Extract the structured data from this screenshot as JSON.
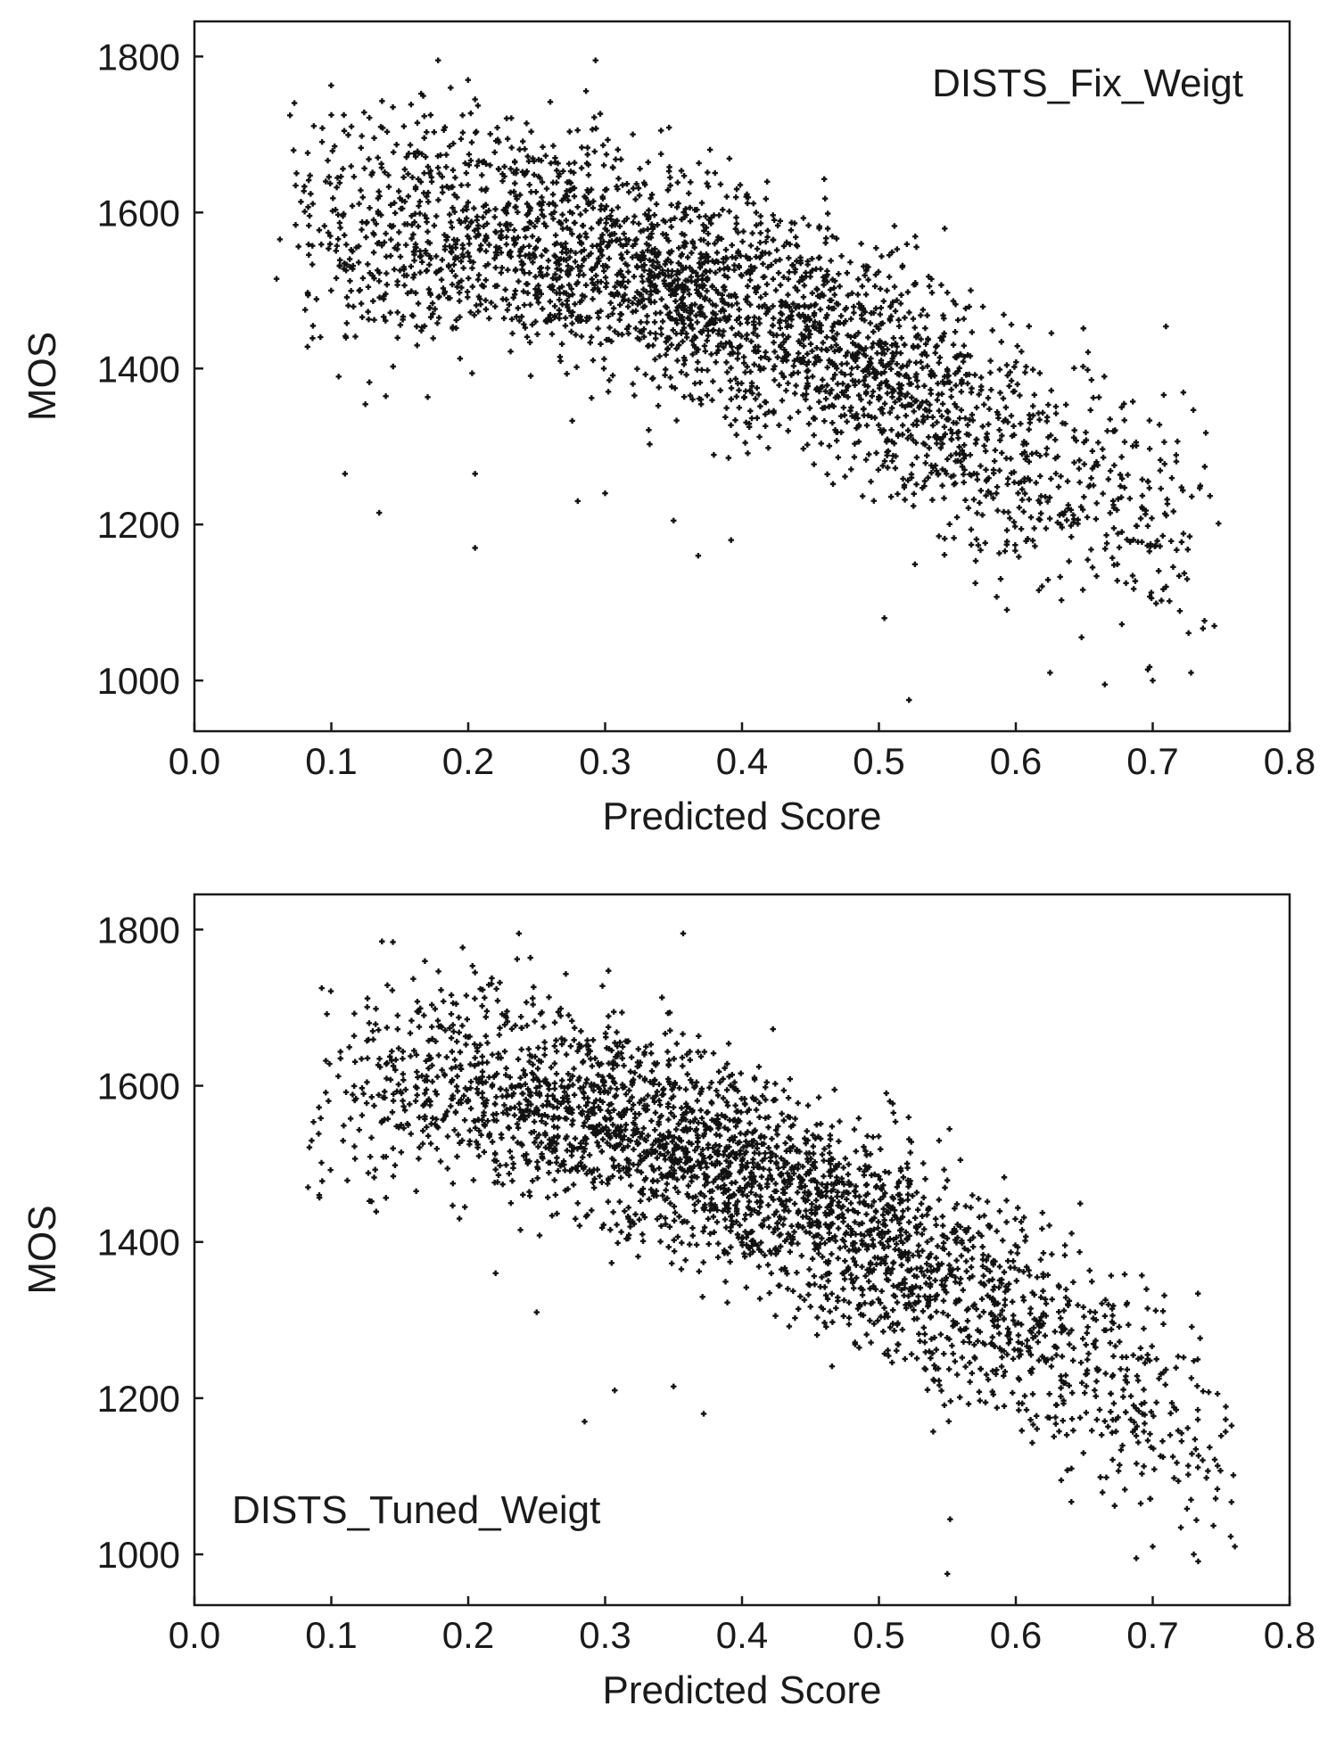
{
  "chart_data": [
    {
      "type": "scatter",
      "title": "",
      "annotation": "DISTS_Fix_Weigt",
      "annotation_position": "top-right",
      "xlabel": "Predicted Score",
      "ylabel": "MOS",
      "xlim": [
        0.0,
        0.8
      ],
      "ylim": [
        935,
        1845
      ],
      "xticks": [
        "0.0",
        "0.1",
        "0.2",
        "0.3",
        "0.4",
        "0.5",
        "0.6",
        "0.7",
        "0.8"
      ],
      "yticks": [
        "1000",
        "1200",
        "1400",
        "1600",
        "1800"
      ],
      "grid": false,
      "marker": "plus",
      "marker_color": "#111111",
      "points_estimated": 3000,
      "trend": {
        "center": [
          [
            0.1,
            1575
          ],
          [
            0.2,
            1580
          ],
          [
            0.3,
            1545
          ],
          [
            0.4,
            1475
          ],
          [
            0.5,
            1410
          ],
          [
            0.6,
            1290
          ],
          [
            0.7,
            1215
          ]
        ],
        "x_distribution": [
          [
            0.06,
            0.0
          ],
          [
            0.1,
            0.35
          ],
          [
            0.2,
            0.7
          ],
          [
            0.3,
            0.9
          ],
          [
            0.4,
            1.0
          ],
          [
            0.5,
            0.85
          ],
          [
            0.6,
            0.45
          ],
          [
            0.7,
            0.25
          ],
          [
            0.75,
            0.05
          ]
        ],
        "spread": [
          [
            0.1,
            80
          ],
          [
            0.3,
            70
          ],
          [
            0.5,
            75
          ],
          [
            0.7,
            85
          ]
        ],
        "outliers": [
          [
            0.06,
            1515
          ],
          [
            0.1,
            1725
          ],
          [
            0.145,
            1735
          ],
          [
            0.178,
            1795
          ],
          [
            0.205,
            1745
          ],
          [
            0.293,
            1795
          ],
          [
            0.11,
            1265
          ],
          [
            0.135,
            1215
          ],
          [
            0.205,
            1170
          ],
          [
            0.205,
            1265
          ],
          [
            0.28,
            1230
          ],
          [
            0.3,
            1240
          ],
          [
            0.368,
            1160
          ],
          [
            0.392,
            1180
          ],
          [
            0.35,
            1205
          ],
          [
            0.522,
            975
          ],
          [
            0.504,
            1080
          ],
          [
            0.625,
            1010
          ],
          [
            0.665,
            995
          ],
          [
            0.7,
            1000
          ],
          [
            0.728,
            1010
          ],
          [
            0.745,
            1070
          ]
        ]
      }
    },
    {
      "type": "scatter",
      "title": "",
      "annotation": "DISTS_Tuned_Weigt",
      "annotation_position": "bottom-left",
      "xlabel": "Predicted Score",
      "ylabel": "MOS",
      "xlim": [
        0.0,
        0.8
      ],
      "ylim": [
        935,
        1845
      ],
      "xticks": [
        "0.0",
        "0.1",
        "0.2",
        "0.3",
        "0.4",
        "0.5",
        "0.6",
        "0.7",
        "0.8"
      ],
      "yticks": [
        "1000",
        "1200",
        "1400",
        "1600",
        "1800"
      ],
      "grid": false,
      "marker": "plus",
      "marker_color": "#111111",
      "points_estimated": 3000,
      "trend": {
        "center": [
          [
            0.1,
            1590
          ],
          [
            0.2,
            1610
          ],
          [
            0.3,
            1560
          ],
          [
            0.4,
            1490
          ],
          [
            0.5,
            1400
          ],
          [
            0.6,
            1300
          ],
          [
            0.7,
            1190
          ],
          [
            0.76,
            1130
          ]
        ],
        "x_distribution": [
          [
            0.08,
            0.0
          ],
          [
            0.1,
            0.12
          ],
          [
            0.2,
            0.5
          ],
          [
            0.3,
            0.85
          ],
          [
            0.4,
            1.0
          ],
          [
            0.5,
            0.85
          ],
          [
            0.6,
            0.5
          ],
          [
            0.7,
            0.3
          ],
          [
            0.76,
            0.05
          ]
        ],
        "spread": [
          [
            0.1,
            70
          ],
          [
            0.3,
            65
          ],
          [
            0.5,
            70
          ],
          [
            0.7,
            75
          ]
        ],
        "outliers": [
          [
            0.083,
            1470
          ],
          [
            0.093,
            1725
          ],
          [
            0.237,
            1795
          ],
          [
            0.357,
            1795
          ],
          [
            0.205,
            1745
          ],
          [
            0.22,
            1360
          ],
          [
            0.25,
            1310
          ],
          [
            0.285,
            1170
          ],
          [
            0.307,
            1210
          ],
          [
            0.35,
            1215
          ],
          [
            0.372,
            1180
          ],
          [
            0.162,
            1465
          ],
          [
            0.55,
            975
          ],
          [
            0.552,
            1045
          ],
          [
            0.688,
            995
          ],
          [
            0.73,
            1000
          ],
          [
            0.76,
            1010
          ],
          [
            0.7,
            1010
          ],
          [
            0.728,
            1070
          ]
        ]
      }
    }
  ]
}
